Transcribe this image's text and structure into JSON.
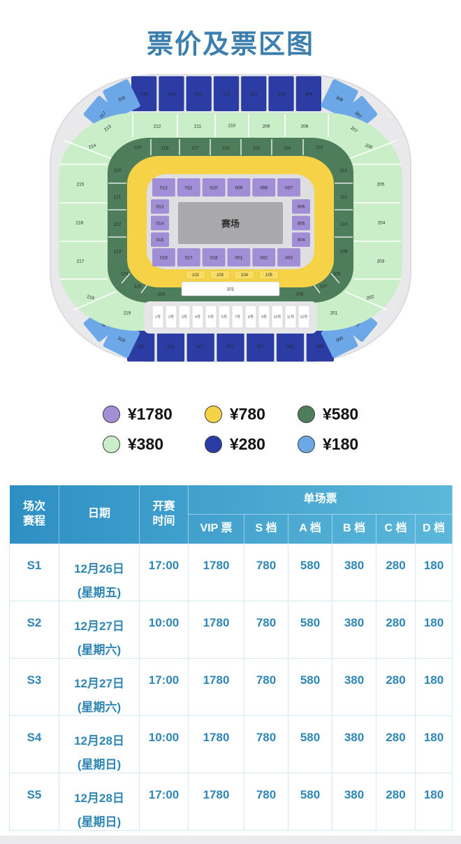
{
  "page": {
    "title": "票价及票区图",
    "title_color": "#3c7fae",
    "accent": "#2e86b4"
  },
  "tiers": [
    {
      "name": "vip",
      "price": "¥1780",
      "color": "#a18ed6"
    },
    {
      "name": "s",
      "price": "¥780",
      "color": "#f5d246"
    },
    {
      "name": "a",
      "price": "¥580",
      "color": "#4e7d5b"
    },
    {
      "name": "b",
      "price": "¥380",
      "color": "#c9eec8"
    },
    {
      "name": "c",
      "price": "¥280",
      "color": "#2b3da4"
    },
    {
      "name": "d",
      "price": "¥180",
      "color": "#6ca7e8"
    }
  ],
  "stadium": {
    "field_label": "赛场",
    "sections": {
      "vip_top": [
        "012",
        "011",
        "010",
        "009",
        "008",
        "007"
      ],
      "vip_left": [
        "013",
        "014",
        "015"
      ],
      "vip_right": [
        "006",
        "005",
        "004"
      ],
      "vip_bottom": [
        "016",
        "017",
        "018",
        "001",
        "002",
        "003"
      ],
      "s_bottom": [
        "102",
        "103",
        "104",
        "105"
      ],
      "s_stage_front": "101",
      "a_top": [
        "119",
        "118",
        "117",
        "116",
        "115",
        "114",
        "113"
      ],
      "a_left": [
        "120",
        "121",
        "122",
        "123"
      ],
      "a_right": [
        "112",
        "111",
        "110",
        "109"
      ],
      "a_bottom_left": [
        "124",
        "125",
        "126"
      ],
      "a_bottom_right": [
        "108",
        "107",
        "106"
      ],
      "b_top": [
        "213",
        "212",
        "211",
        "210",
        "209",
        "208",
        "207"
      ],
      "b_left": [
        "214",
        "215",
        "216",
        "217",
        "218",
        "219"
      ],
      "b_right": [
        "206",
        "205",
        "204",
        "203",
        "202",
        "201"
      ],
      "c_top": [
        "315",
        "314",
        "313",
        "312",
        "311",
        "310",
        "309"
      ],
      "c_bottom": [
        "320",
        "321",
        "322",
        "301",
        "302",
        "303",
        "304"
      ],
      "d_top_left": [
        "316",
        "317"
      ],
      "d_top_right": [
        "308",
        "307"
      ],
      "d_bottom_left": [
        "318",
        "319"
      ],
      "d_bottom_right": [
        "305",
        "306"
      ],
      "gates": [
        "1号",
        "2号",
        "3号",
        "4号",
        "5号",
        "6号",
        "7号",
        "8号",
        "9号",
        "10号",
        "11号",
        "12号"
      ]
    }
  },
  "table": {
    "header_gradient": [
      "#2e8fc3",
      "#5cb8da"
    ],
    "header": {
      "session": [
        "场次",
        "赛程"
      ],
      "date": "日期",
      "time": [
        "开赛",
        "时间"
      ],
      "group": "单场票",
      "subcols": [
        "VIP 票",
        "S 档",
        "A 档",
        "B 档",
        "C 档",
        "D 档"
      ]
    },
    "rows": [
      {
        "session": "S1",
        "date": "12月26日",
        "weekday": "(星期五)",
        "time": "17:00",
        "prices": [
          "1780",
          "780",
          "580",
          "380",
          "280",
          "180"
        ]
      },
      {
        "session": "S2",
        "date": "12月27日",
        "weekday": "(星期六)",
        "time": "10:00",
        "prices": [
          "1780",
          "780",
          "580",
          "380",
          "280",
          "180"
        ]
      },
      {
        "session": "S3",
        "date": "12月27日",
        "weekday": "(星期六)",
        "time": "17:00",
        "prices": [
          "1780",
          "780",
          "580",
          "380",
          "280",
          "180"
        ]
      },
      {
        "session": "S4",
        "date": "12月28日",
        "weekday": "(星期日)",
        "time": "10:00",
        "prices": [
          "1780",
          "780",
          "580",
          "380",
          "280",
          "180"
        ]
      },
      {
        "session": "S5",
        "date": "12月28日",
        "weekday": "(星期日)",
        "time": "17:00",
        "prices": [
          "1780",
          "780",
          "580",
          "380",
          "280",
          "180"
        ]
      }
    ]
  }
}
